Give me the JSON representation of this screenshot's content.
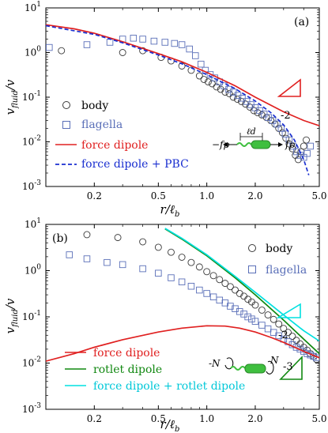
{
  "chart_data": [
    {
      "type": "scatter",
      "panel_label": "(a)",
      "xlabel": "r/ℓb",
      "ylabel": "vfluid/v",
      "xscale": "log",
      "yscale": "log",
      "xlim": [
        0.1,
        5.0
      ],
      "ylim": [
        0.001,
        10
      ],
      "xticks": [
        "0.2",
        "0.5",
        "1.0",
        "2.0",
        "5.0"
      ],
      "yticks": [
        "10-3",
        "10-2",
        "10-1",
        "100",
        "101"
      ],
      "legend": [
        "body",
        "flagella",
        "force dipole",
        "force dipole + PBC"
      ],
      "legend_position": "bottom-left",
      "slope_label": "-2",
      "inset_labels": {
        "f_left": "−fp",
        "ld": "ℓd",
        "f_right": "fp"
      },
      "colors": {
        "body": "#3a3a3a",
        "flagella": "#5a6fb8",
        "force_dipole": "#e02020",
        "pbc": "#1a2fd0",
        "swimmer": "#3fbf3f"
      },
      "series": [
        {
          "name": "body",
          "kind": "circle",
          "points": [
            [
              0.125,
              1.1
            ],
            [
              0.3,
              1.0
            ],
            [
              0.4,
              1.1
            ],
            [
              0.52,
              0.78
            ],
            [
              0.6,
              0.65
            ],
            [
              0.7,
              0.5
            ],
            [
              0.8,
              0.4
            ],
            [
              0.9,
              0.3
            ],
            [
              0.96,
              0.25
            ],
            [
              1.02,
              0.22
            ],
            [
              1.08,
              0.2
            ],
            [
              1.15,
              0.17
            ],
            [
              1.22,
              0.15
            ],
            [
              1.3,
              0.13
            ],
            [
              1.38,
              0.12
            ],
            [
              1.46,
              0.1
            ],
            [
              1.55,
              0.09
            ],
            [
              1.64,
              0.08
            ],
            [
              1.74,
              0.07
            ],
            [
              1.85,
              0.06
            ],
            [
              1.96,
              0.05
            ],
            [
              2.07,
              0.045
            ],
            [
              2.2,
              0.04
            ],
            [
              2.35,
              0.035
            ],
            [
              2.5,
              0.03
            ],
            [
              2.65,
              0.025
            ],
            [
              2.8,
              0.02
            ],
            [
              2.95,
              0.016
            ],
            [
              3.1,
              0.012
            ],
            [
              3.25,
              0.009
            ],
            [
              3.4,
              0.007
            ],
            [
              3.55,
              0.005
            ],
            [
              3.7,
              0.004
            ],
            [
              3.85,
              0.006
            ],
            [
              4.0,
              0.008
            ],
            [
              4.15,
              0.011
            ]
          ]
        },
        {
          "name": "flagella",
          "kind": "square",
          "points": [
            [
              0.105,
              1.3
            ],
            [
              0.18,
              1.5
            ],
            [
              0.25,
              1.7
            ],
            [
              0.3,
              2.0
            ],
            [
              0.35,
              2.1
            ],
            [
              0.4,
              2.0
            ],
            [
              0.47,
              1.8
            ],
            [
              0.55,
              1.7
            ],
            [
              0.63,
              1.6
            ],
            [
              0.7,
              1.5
            ],
            [
              0.78,
              1.2
            ],
            [
              0.85,
              0.85
            ],
            [
              0.92,
              0.55
            ],
            [
              0.98,
              0.4
            ],
            [
              1.05,
              0.32
            ],
            [
              1.12,
              0.27
            ],
            [
              1.2,
              0.22
            ],
            [
              1.28,
              0.18
            ],
            [
              1.37,
              0.15
            ],
            [
              1.46,
              0.13
            ],
            [
              1.56,
              0.11
            ],
            [
              1.66,
              0.095
            ],
            [
              1.77,
              0.08
            ],
            [
              1.88,
              0.068
            ],
            [
              2.0,
              0.058
            ],
            [
              2.13,
              0.05
            ],
            [
              2.27,
              0.042
            ],
            [
              2.42,
              0.035
            ],
            [
              2.57,
              0.03
            ],
            [
              2.73,
              0.025
            ],
            [
              2.9,
              0.02
            ],
            [
              3.07,
              0.015
            ],
            [
              3.25,
              0.011
            ],
            [
              3.43,
              0.008
            ],
            [
              3.62,
              0.006
            ],
            [
              3.81,
              0.005
            ],
            [
              4.0,
              0.0045
            ],
            [
              4.2,
              0.0055
            ],
            [
              4.4,
              0.008
            ]
          ]
        },
        {
          "name": "force dipole",
          "kind": "line",
          "points": [
            [
              0.1,
              4.2
            ],
            [
              0.15,
              3.4
            ],
            [
              0.2,
              2.7
            ],
            [
              0.3,
              1.75
            ],
            [
              0.5,
              0.95
            ],
            [
              0.7,
              0.62
            ],
            [
              1.0,
              0.36
            ],
            [
              1.5,
              0.18
            ],
            [
              2.0,
              0.1
            ],
            [
              3.0,
              0.047
            ],
            [
              4.0,
              0.03
            ],
            [
              5.0,
              0.023
            ]
          ]
        },
        {
          "name": "force dipole + PBC",
          "kind": "dashed",
          "points": [
            [
              0.1,
              4.0
            ],
            [
              0.2,
              2.55
            ],
            [
              0.3,
              1.65
            ],
            [
              0.5,
              0.88
            ],
            [
              0.7,
              0.56
            ],
            [
              1.0,
              0.32
            ],
            [
              1.5,
              0.155
            ],
            [
              2.0,
              0.082
            ],
            [
              2.5,
              0.045
            ],
            [
              3.0,
              0.024
            ],
            [
              3.5,
              0.011
            ],
            [
              4.0,
              0.004
            ],
            [
              4.3,
              0.0018
            ]
          ]
        }
      ]
    },
    {
      "type": "scatter",
      "panel_label": "(b)",
      "xlabel": "r/ℓb",
      "ylabel": "vfluid/v",
      "xscale": "log",
      "yscale": "log",
      "xlim": [
        0.1,
        5.0
      ],
      "ylim": [
        0.001,
        10
      ],
      "xticks": [
        "0.2",
        "0.5",
        "1.0",
        "2.0",
        "5.0"
      ],
      "yticks": [
        "10-3",
        "10-2",
        "10-1",
        "100",
        "101"
      ],
      "legend": [
        "body",
        "flagella",
        "force dipole",
        "rotlet dipole",
        "force dipole + rotlet dipole"
      ],
      "legend_position": "top-right / bottom-left",
      "slope_labels": [
        "-2",
        "-3"
      ],
      "inset_labels": {
        "torque_left": "-N",
        "torque_right": "N"
      },
      "colors": {
        "body": "#3a3a3a",
        "flagella": "#5a6fb8",
        "force_dipole": "#e02020",
        "rotlet_dipole": "#118811",
        "combined": "#00e0e0",
        "swimmer": "#3fbf3f"
      },
      "series": [
        {
          "name": "body",
          "kind": "circle",
          "points": [
            [
              0.18,
              6.0
            ],
            [
              0.28,
              5.2
            ],
            [
              0.4,
              4.2
            ],
            [
              0.5,
              3.2
            ],
            [
              0.6,
              2.5
            ],
            [
              0.7,
              1.95
            ],
            [
              0.8,
              1.5
            ],
            [
              0.9,
              1.2
            ],
            [
              1.0,
              0.95
            ],
            [
              1.1,
              0.78
            ],
            [
              1.2,
              0.64
            ],
            [
              1.3,
              0.53
            ],
            [
              1.4,
              0.45
            ],
            [
              1.5,
              0.38
            ],
            [
              1.6,
              0.32
            ],
            [
              1.7,
              0.28
            ],
            [
              1.8,
              0.24
            ],
            [
              1.9,
              0.21
            ],
            [
              2.0,
              0.18
            ],
            [
              2.2,
              0.14
            ],
            [
              2.4,
              0.11
            ],
            [
              2.6,
              0.088
            ],
            [
              2.8,
              0.07
            ],
            [
              3.0,
              0.056
            ],
            [
              3.2,
              0.046
            ],
            [
              3.4,
              0.038
            ],
            [
              3.6,
              0.031
            ],
            [
              3.8,
              0.026
            ],
            [
              4.0,
              0.022
            ],
            [
              4.2,
              0.019
            ],
            [
              4.4,
              0.016
            ],
            [
              4.6,
              0.014
            ],
            [
              4.8,
              0.012
            ]
          ]
        },
        {
          "name": "flagella",
          "kind": "square",
          "points": [
            [
              0.14,
              2.2
            ],
            [
              0.18,
              1.8
            ],
            [
              0.24,
              1.5
            ],
            [
              0.3,
              1.35
            ],
            [
              0.4,
              1.1
            ],
            [
              0.5,
              0.88
            ],
            [
              0.6,
              0.7
            ],
            [
              0.7,
              0.57
            ],
            [
              0.8,
              0.46
            ],
            [
              0.9,
              0.38
            ],
            [
              1.0,
              0.32
            ],
            [
              1.1,
              0.27
            ],
            [
              1.2,
              0.23
            ],
            [
              1.3,
              0.2
            ],
            [
              1.4,
              0.17
            ],
            [
              1.5,
              0.15
            ],
            [
              1.6,
              0.13
            ],
            [
              1.7,
              0.115
            ],
            [
              1.8,
              0.1
            ],
            [
              1.9,
              0.09
            ],
            [
              2.0,
              0.08
            ],
            [
              2.2,
              0.066
            ],
            [
              2.4,
              0.055
            ],
            [
              2.6,
              0.046
            ],
            [
              2.8,
              0.039
            ],
            [
              3.0,
              0.033
            ],
            [
              3.2,
              0.029
            ],
            [
              3.4,
              0.025
            ],
            [
              3.6,
              0.022
            ],
            [
              3.8,
              0.02
            ],
            [
              4.0,
              0.018
            ],
            [
              4.2,
              0.016
            ],
            [
              4.4,
              0.015
            ],
            [
              4.6,
              0.014
            ],
            [
              4.8,
              0.013
            ]
          ]
        },
        {
          "name": "force dipole",
          "kind": "line",
          "points": [
            [
              0.1,
              0.011
            ],
            [
              0.15,
              0.016
            ],
            [
              0.2,
              0.022
            ],
            [
              0.3,
              0.032
            ],
            [
              0.5,
              0.047
            ],
            [
              0.7,
              0.057
            ],
            [
              1.0,
              0.064
            ],
            [
              1.3,
              0.063
            ],
            [
              1.6,
              0.057
            ],
            [
              2.0,
              0.047
            ],
            [
              2.5,
              0.036
            ],
            [
              3.0,
              0.028
            ],
            [
              4.0,
              0.018
            ],
            [
              5.0,
              0.013
            ]
          ]
        },
        {
          "name": "rotlet dipole",
          "kind": "line",
          "points": [
            [
              0.55,
              8.0
            ],
            [
              0.7,
              4.8
            ],
            [
              1.0,
              2.1
            ],
            [
              1.5,
              0.7
            ],
            [
              2.0,
              0.3
            ],
            [
              3.0,
              0.085
            ],
            [
              4.0,
              0.033
            ],
            [
              5.0,
              0.016
            ]
          ]
        },
        {
          "name": "force dipole + rotlet dipole",
          "kind": "line",
          "points": [
            [
              0.55,
              8.2
            ],
            [
              0.7,
              5.0
            ],
            [
              1.0,
              2.2
            ],
            [
              1.5,
              0.75
            ],
            [
              2.0,
              0.34
            ],
            [
              3.0,
              0.11
            ],
            [
              4.0,
              0.05
            ],
            [
              5.0,
              0.03
            ]
          ]
        }
      ]
    }
  ]
}
